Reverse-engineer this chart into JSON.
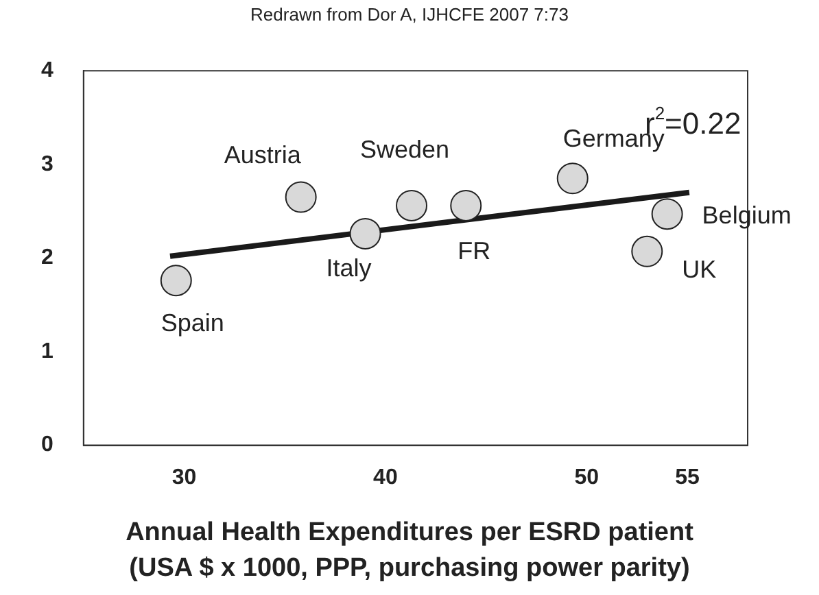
{
  "chart_data": {
    "type": "scatter",
    "title": "Redrawn  from  Dor  A, IJHCFE 2007  7:73",
    "xlabel": "Annual Health Expenditures per  ESRD patient\n(USA $ x  1000, PPP, purchasing power parity)",
    "xlim": [
      25,
      58
    ],
    "xticks": [
      30,
      40,
      50,
      55
    ],
    "ylim": [
      0,
      4
    ],
    "yticks": [
      0,
      1,
      2,
      3,
      4
    ],
    "grid": false,
    "marker": "circle",
    "series": [
      {
        "color": "#d9d9d9",
        "x": [
          29.6,
          35.8,
          39.0,
          41.3,
          44.0,
          49.3,
          54.0,
          53.0
        ],
        "values": [
          1.76,
          2.65,
          2.26,
          2.56,
          2.56,
          2.85,
          2.47,
          2.07
        ]
      },
      {
        "type": "line",
        "marker": "none",
        "color": "#1a1a1a",
        "x": [
          29.3,
          55.1
        ],
        "values": [
          2.02,
          2.7
        ]
      }
    ],
    "annotations": [
      {
        "text": "Spain",
        "x": 29.6,
        "y": 1.76
      },
      {
        "text": "Austria",
        "x": 35.8,
        "y": 2.65
      },
      {
        "text": "Italy",
        "x": 39.0,
        "y": 2.26
      },
      {
        "text": "Sweden",
        "x": 41.3,
        "y": 2.56
      },
      {
        "text": "FR",
        "x": 44.0,
        "y": 2.56
      },
      {
        "text": "Germany",
        "x": 49.3,
        "y": 2.85
      },
      {
        "text": "Belgium",
        "x": 54.0,
        "y": 2.47
      },
      {
        "text": "UK",
        "x": 53.0,
        "y": 2.07
      },
      "r$^{2}$=0.22"
    ]
  }
}
